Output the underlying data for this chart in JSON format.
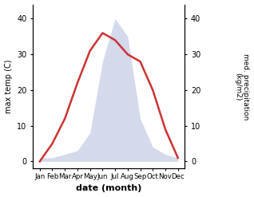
{
  "months": [
    "Jan",
    "Feb",
    "Mar",
    "Apr",
    "May",
    "Jun",
    "Jul",
    "Aug",
    "Sep",
    "Oct",
    "Nov",
    "Dec"
  ],
  "temperature": [
    0,
    5,
    12,
    22,
    31,
    36,
    34,
    30,
    28,
    20,
    9,
    1
  ],
  "precipitation": [
    1,
    1,
    2,
    3,
    8,
    28,
    40,
    35,
    12,
    4,
    2,
    1
  ],
  "temp_color": "#cc3333",
  "precip_fill_color": "#b8c0e0",
  "ylabel_left": "max temp (C)",
  "ylabel_right": "med. precipitation\n(kg/m2)",
  "xlabel": "date (month)",
  "ylim_left": [
    -2,
    44
  ],
  "ylim_right": [
    -2,
    44
  ],
  "right_tick_values": [
    0,
    10,
    20,
    30,
    40
  ],
  "left_tick_values": [
    0,
    10,
    20,
    30,
    40
  ],
  "background_color": "#ffffff"
}
